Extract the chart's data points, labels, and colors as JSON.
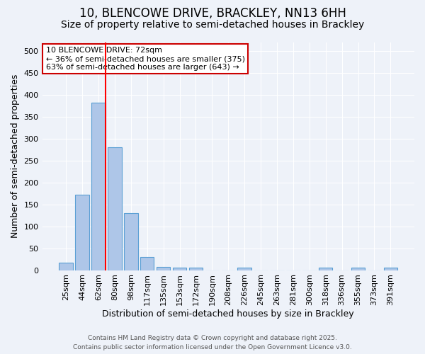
{
  "title_line1": "10, BLENCOWE DRIVE, BRACKLEY, NN13 6HH",
  "title_line2": "Size of property relative to semi-detached houses in Brackley",
  "xlabel": "Distribution of semi-detached houses by size in Brackley",
  "ylabel": "Number of semi-detached properties",
  "bins": [
    "25sqm",
    "44sqm",
    "62sqm",
    "80sqm",
    "98sqm",
    "117sqm",
    "135sqm",
    "153sqm",
    "172sqm",
    "190sqm",
    "208sqm",
    "226sqm",
    "245sqm",
    "263sqm",
    "281sqm",
    "300sqm",
    "318sqm",
    "336sqm",
    "355sqm",
    "373sqm",
    "391sqm"
  ],
  "values": [
    17,
    173,
    383,
    281,
    131,
    30,
    8,
    6,
    6,
    0,
    0,
    6,
    0,
    0,
    0,
    0,
    5,
    0,
    5,
    0,
    5
  ],
  "bar_color": "#aec6e8",
  "bar_edge_color": "#5a9fd4",
  "red_line_index": 2,
  "annotation_text": "10 BLENCOWE DRIVE: 72sqm\n← 36% of semi-detached houses are smaller (375)\n63% of semi-detached houses are larger (643) →",
  "annotation_box_color": "#ffffff",
  "annotation_box_edge": "#cc0000",
  "ylim": [
    0,
    520
  ],
  "yticks": [
    0,
    50,
    100,
    150,
    200,
    250,
    300,
    350,
    400,
    450,
    500
  ],
  "footer_line1": "Contains HM Land Registry data © Crown copyright and database right 2025.",
  "footer_line2": "Contains public sector information licensed under the Open Government Licence v3.0.",
  "background_color": "#eef2f9",
  "plot_bg_color": "#eef2f9",
  "grid_color": "#ffffff",
  "title_fontsize": 12,
  "subtitle_fontsize": 10,
  "axis_label_fontsize": 9,
  "tick_fontsize": 8,
  "footer_fontsize": 6.5,
  "annot_fontsize": 8
}
